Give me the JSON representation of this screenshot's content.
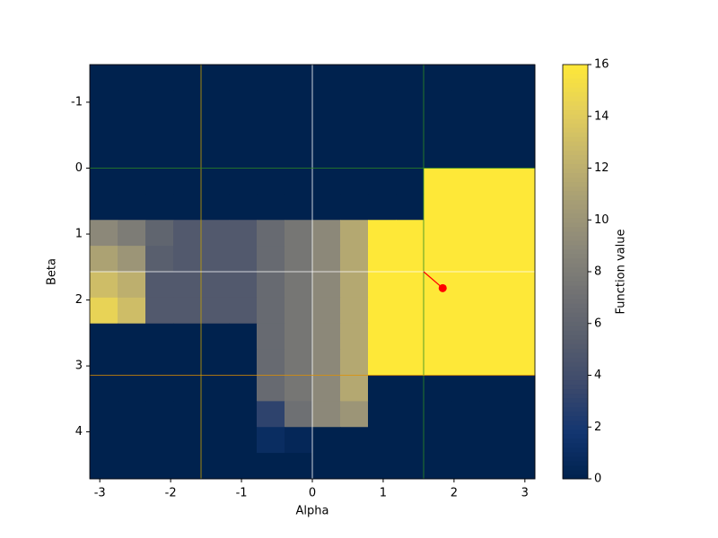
{
  "chart_data": {
    "type": "heatmap",
    "xlabel": "Alpha",
    "ylabel": "Beta",
    "colorbar_label": "Function value",
    "xlim": [
      -3.1416,
      3.1416
    ],
    "ylim": [
      4.7124,
      -1.5708
    ],
    "xticks": [
      -3,
      -2,
      -1,
      0,
      1,
      2,
      3
    ],
    "yticks": [
      -1,
      0,
      1,
      2,
      3,
      4
    ],
    "clim": [
      0,
      16
    ],
    "cticks": [
      0,
      2,
      4,
      6,
      8,
      10,
      12,
      14,
      16
    ],
    "colormap": [
      "#00224e",
      "#123570",
      "#3b496c",
      "#575d6d",
      "#707173",
      "#8a8779",
      "#a69d75",
      "#c4b56c",
      "#e4cf5b",
      "#fee838"
    ],
    "z": [
      [
        0,
        0,
        0,
        0,
        0,
        0,
        0,
        0,
        0,
        0,
        0,
        0,
        0,
        0,
        0,
        0
      ],
      [
        0,
        0,
        0,
        0,
        0,
        0,
        0,
        0,
        0,
        0,
        0,
        0,
        0,
        0,
        0,
        0
      ],
      [
        0,
        0,
        0,
        0,
        0,
        0,
        0,
        0,
        0,
        0,
        0,
        0,
        0,
        0,
        0,
        0
      ],
      [
        0,
        0,
        0,
        0,
        0,
        0,
        0,
        0,
        0,
        0,
        0,
        0,
        0,
        0,
        0,
        0
      ],
      [
        0,
        0,
        0,
        0,
        0,
        0,
        0,
        0,
        0,
        0,
        0,
        0,
        16,
        16,
        16,
        16
      ],
      [
        0,
        0,
        0,
        0,
        0,
        0,
        0,
        0,
        0,
        0,
        0,
        0,
        16,
        16,
        16,
        16
      ],
      [
        9,
        8,
        6,
        5,
        5,
        5,
        6.5,
        7.5,
        9,
        11.5,
        16,
        16,
        16,
        16,
        16,
        16
      ],
      [
        11,
        10,
        5.5,
        5,
        5,
        5,
        6.5,
        7.5,
        9,
        11.5,
        16,
        16,
        16,
        16,
        16,
        16
      ],
      [
        13,
        12,
        5,
        5,
        5,
        5,
        6.5,
        7.5,
        9,
        11.5,
        16,
        16,
        16,
        16,
        16,
        16
      ],
      [
        14.5,
        13,
        5,
        5,
        5,
        5,
        6.5,
        7.5,
        9,
        11.5,
        16,
        16,
        16,
        16,
        16,
        16
      ],
      [
        0,
        0,
        0,
        0,
        0,
        0,
        6.5,
        7.5,
        9,
        11.5,
        16,
        16,
        16,
        16,
        16,
        16
      ],
      [
        0,
        0,
        0,
        0,
        0,
        0,
        6.5,
        7.5,
        9,
        11.5,
        16,
        16,
        16,
        16,
        16,
        16
      ],
      [
        0,
        0,
        0,
        0,
        0,
        0,
        6.5,
        7.5,
        9,
        11.5,
        0,
        0,
        0,
        0,
        0,
        0
      ],
      [
        0,
        0,
        0,
        0,
        0,
        0,
        3,
        7,
        9,
        10,
        0,
        0,
        0,
        0,
        0,
        0
      ],
      [
        0,
        0,
        0,
        0,
        0,
        0,
        1,
        0.5,
        0,
        0,
        0,
        0,
        0,
        0,
        0,
        0
      ],
      [
        0,
        0,
        0,
        0,
        0,
        0,
        0,
        0,
        0,
        0,
        0,
        0,
        0,
        0,
        0,
        0
      ]
    ],
    "vlines": [
      {
        "x": -1.5708,
        "color": "#c8a000"
      },
      {
        "x": 0,
        "color": "#ffffff"
      },
      {
        "x": 1.5708,
        "color": "#2e8b22"
      }
    ],
    "hlines": [
      {
        "y": 0,
        "color": "#2e8b22"
      },
      {
        "y": 1.5708,
        "color": "#ffffff"
      },
      {
        "y": 3.1416,
        "color": "#e09000"
      }
    ],
    "marker": {
      "x": 1.84,
      "y": 1.82,
      "from_x": 1.5708,
      "from_y": 1.5708,
      "color": "#ff0000"
    }
  }
}
